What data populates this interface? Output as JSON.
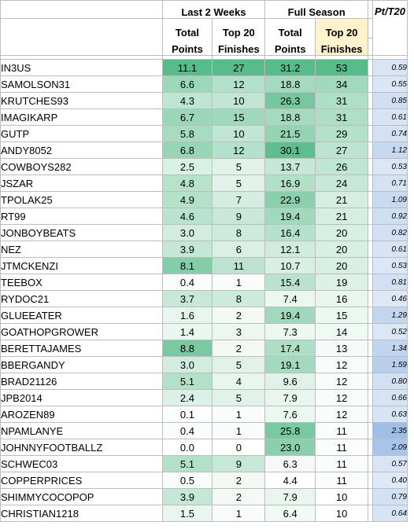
{
  "headers": {
    "group_recent": "Last 2 Weeks",
    "group_season": "Full Season",
    "recent_points_top": "Total",
    "recent_points_bottom": "Points",
    "recent_top20_top": "Top 20",
    "recent_top20_bottom": "Finishes",
    "season_points_top": "Total",
    "season_points_bottom": "Points",
    "season_top20_top": "Top 20",
    "season_top20_bottom": "Finishes",
    "ratio": "Pt/T20"
  },
  "colors": {
    "header_highlight": "#fff2cc",
    "green_scale_low": "#ffffff",
    "green_scale_high": "#57bb8a",
    "ratio_scale_low": "#dfe9f7",
    "ratio_scale_high": "#9fbfe7"
  },
  "rows": [
    {
      "name": "IN3US",
      "recent_points": "11.1",
      "recent_top20": "27",
      "season_points": "31.2",
      "season_top20": "53",
      "ratio": "0.59"
    },
    {
      "name": "SAMOLSON31",
      "recent_points": "6.6",
      "recent_top20": "12",
      "season_points": "18.8",
      "season_top20": "34",
      "ratio": "0.55"
    },
    {
      "name": "KRUTCHES93",
      "recent_points": "4.3",
      "recent_top20": "10",
      "season_points": "26.3",
      "season_top20": "31",
      "ratio": "0.85"
    },
    {
      "name": "IMAGIKARP",
      "recent_points": "6.7",
      "recent_top20": "15",
      "season_points": "18.8",
      "season_top20": "31",
      "ratio": "0.61"
    },
    {
      "name": "GUTP",
      "recent_points": "5.8",
      "recent_top20": "10",
      "season_points": "21.5",
      "season_top20": "29",
      "ratio": "0.74"
    },
    {
      "name": "ANDY8052",
      "recent_points": "6.8",
      "recent_top20": "12",
      "season_points": "30.1",
      "season_top20": "27",
      "ratio": "1.12"
    },
    {
      "name": "COWBOYS282",
      "recent_points": "2.5",
      "recent_top20": "5",
      "season_points": "13.7",
      "season_top20": "26",
      "ratio": "0.53"
    },
    {
      "name": "JSZAR",
      "recent_points": "4.8",
      "recent_top20": "5",
      "season_points": "16.9",
      "season_top20": "24",
      "ratio": "0.71"
    },
    {
      "name": "TPOLAK25",
      "recent_points": "4.9",
      "recent_top20": "7",
      "season_points": "22.9",
      "season_top20": "21",
      "ratio": "1.09"
    },
    {
      "name": "RT99",
      "recent_points": "4.6",
      "recent_top20": "9",
      "season_points": "19.4",
      "season_top20": "21",
      "ratio": "0.92"
    },
    {
      "name": "JONBOYBEATS",
      "recent_points": "3.0",
      "recent_top20": "8",
      "season_points": "16.4",
      "season_top20": "20",
      "ratio": "0.82"
    },
    {
      "name": "NEZ",
      "recent_points": "3.9",
      "recent_top20": "6",
      "season_points": "12.1",
      "season_top20": "20",
      "ratio": "0.61"
    },
    {
      "name": "JTMCKENZI",
      "recent_points": "8.1",
      "recent_top20": "11",
      "season_points": "10.7",
      "season_top20": "20",
      "ratio": "0.53"
    },
    {
      "name": "TEEBOX",
      "recent_points": "0.4",
      "recent_top20": "1",
      "season_points": "15.4",
      "season_top20": "19",
      "ratio": "0.81"
    },
    {
      "name": "RYDOC21",
      "recent_points": "3.7",
      "recent_top20": "8",
      "season_points": "7.4",
      "season_top20": "16",
      "ratio": "0.46"
    },
    {
      "name": "GLUEEATER",
      "recent_points": "1.6",
      "recent_top20": "2",
      "season_points": "19.4",
      "season_top20": "15",
      "ratio": "1.29"
    },
    {
      "name": "GOATHOPGROWER",
      "recent_points": "1.4",
      "recent_top20": "3",
      "season_points": "7.3",
      "season_top20": "14",
      "ratio": "0.52"
    },
    {
      "name": "BERETTAJAMES",
      "recent_points": "8.8",
      "recent_top20": "2",
      "season_points": "17.4",
      "season_top20": "13",
      "ratio": "1.34"
    },
    {
      "name": "BBERGANDY",
      "recent_points": "3.0",
      "recent_top20": "5",
      "season_points": "19.1",
      "season_top20": "12",
      "ratio": "1.59"
    },
    {
      "name": "BRAD21126",
      "recent_points": "5.1",
      "recent_top20": "4",
      "season_points": "9.6",
      "season_top20": "12",
      "ratio": "0.80"
    },
    {
      "name": "JPB2014",
      "recent_points": "2.4",
      "recent_top20": "5",
      "season_points": "7.9",
      "season_top20": "12",
      "ratio": "0.66"
    },
    {
      "name": "AROZEN89",
      "recent_points": "0.1",
      "recent_top20": "1",
      "season_points": "7.6",
      "season_top20": "12",
      "ratio": "0.63"
    },
    {
      "name": "NPAMLANYE",
      "recent_points": "0.4",
      "recent_top20": "1",
      "season_points": "25.8",
      "season_top20": "11",
      "ratio": "2.35"
    },
    {
      "name": "JOHNNYFOOTBALLZ",
      "recent_points": "0.0",
      "recent_top20": "0",
      "season_points": "23.0",
      "season_top20": "11",
      "ratio": "2.09"
    },
    {
      "name": "SCHWEC03",
      "recent_points": "5.1",
      "recent_top20": "9",
      "season_points": "6.3",
      "season_top20": "11",
      "ratio": "0.57"
    },
    {
      "name": "COPPERPRICES",
      "recent_points": "0.5",
      "recent_top20": "2",
      "season_points": "4.4",
      "season_top20": "11",
      "ratio": "0.40"
    },
    {
      "name": "SHIMMYCOCOPOP",
      "recent_points": "3.9",
      "recent_top20": "2",
      "season_points": "7.9",
      "season_top20": "10",
      "ratio": "0.79"
    },
    {
      "name": "CHRISTIAN1218",
      "recent_points": "1.5",
      "recent_top20": "1",
      "season_points": "6.4",
      "season_top20": "10",
      "ratio": "0.64"
    }
  ]
}
